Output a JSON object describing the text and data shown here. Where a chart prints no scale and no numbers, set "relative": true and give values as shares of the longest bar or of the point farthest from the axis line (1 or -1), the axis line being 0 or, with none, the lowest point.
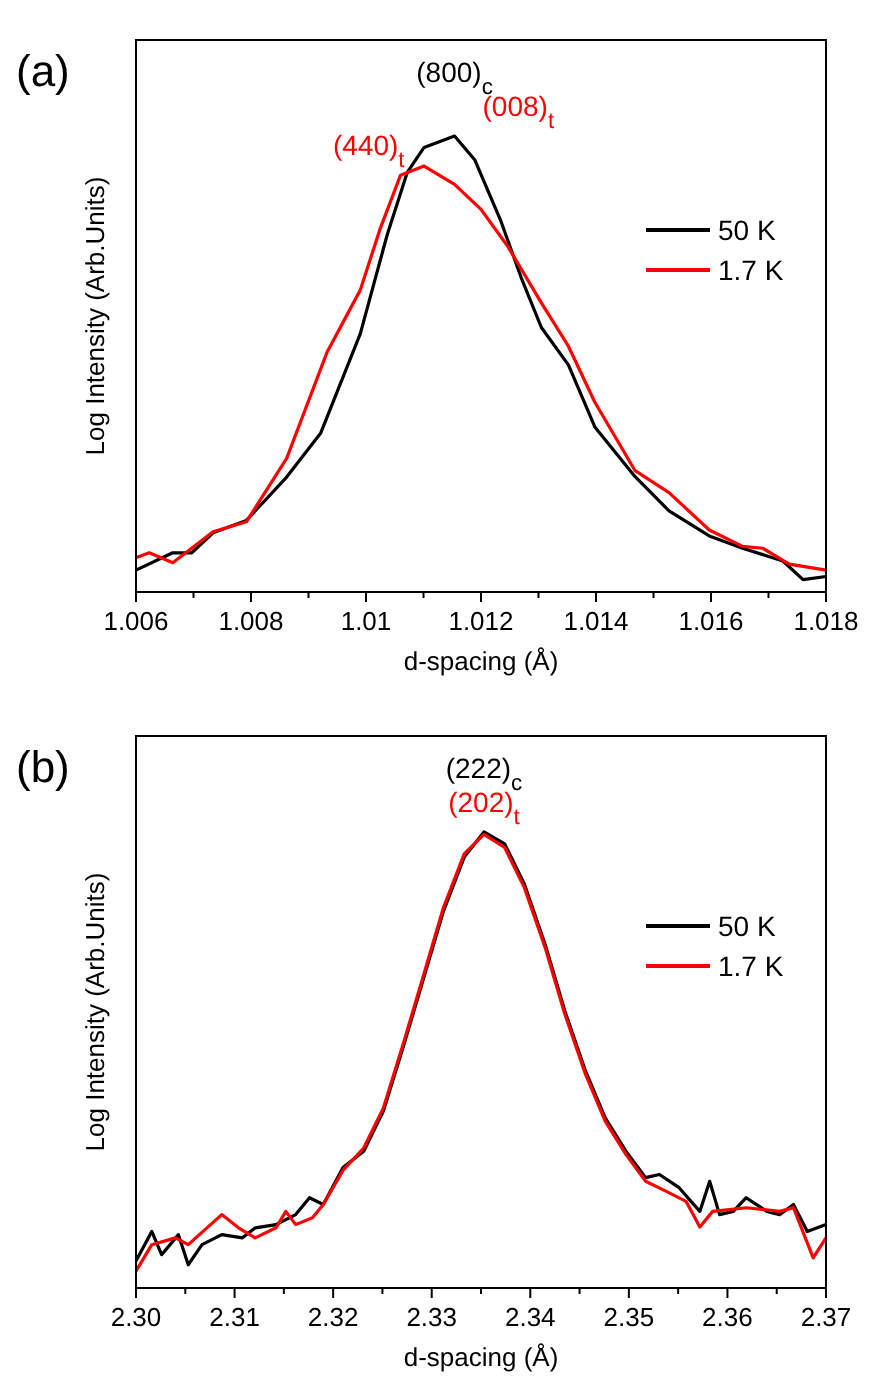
{
  "chart_data": [
    {
      "type": "line",
      "title": "(a)",
      "xlabel": "d-spacing (Å)",
      "ylabel": "Log Intensity (Arb.Units)",
      "relative": true,
      "legend": "right",
      "xlim": [
        1.006,
        1.018
      ],
      "xticks": [
        1.006,
        {
          "value": 1.007,
          "label": null
        },
        1.008,
        {
          "value": 1.009,
          "label": null
        },
        1.01,
        {
          "value": 1.011,
          "label": null
        },
        1.012,
        {
          "value": 1.013,
          "label": null
        },
        1.014,
        {
          "value": 1.015,
          "label": null
        },
        1.016,
        {
          "value": 1.017,
          "label": null
        },
        1.018
      ],
      "annotations": [
        {
          "text": "(800)$_{c}$",
          "x": 1.01154,
          "y": 1.0
        },
        {
          "text": "(440)$_{t}$",
          "x": 1.0106,
          "y": 0.914
        },
        {
          "text": "(008)$_{t}$",
          "x": 1.01154,
          "y": 0.894
        }
      ],
      "series": [
        {
          "name": "50 K",
          "color": "#000000",
          "x": [
            1.006,
            1.00664,
            1.00697,
            1.00734,
            1.00792,
            1.00862,
            1.00921,
            1.0099,
            1.01037,
            1.01072,
            1.01101,
            1.01154,
            1.01189,
            1.01235,
            1.0127,
            1.01305,
            1.01352,
            1.01398,
            1.01468,
            1.01527,
            1.01597,
            1.01655,
            1.01725,
            1.0176,
            1.018
          ],
          "values": [
            0.048,
            0.086,
            0.086,
            0.13,
            0.157,
            0.252,
            0.348,
            0.566,
            0.784,
            0.921,
            0.975,
            1.0,
            0.948,
            0.812,
            0.689,
            0.58,
            0.498,
            0.362,
            0.253,
            0.178,
            0.123,
            0.096,
            0.068,
            0.027,
            0.034
          ]
        },
        {
          "name": "1.7 K",
          "color": "#ff0000",
          "x": [
            1.006,
            1.00623,
            1.00664,
            1.00734,
            1.00792,
            1.00862,
            1.00932,
            1.0099,
            1.01025,
            1.0106,
            1.01101,
            1.01154,
            1.012,
            1.01247,
            1.01305,
            1.01352,
            1.01398,
            1.01468,
            1.01527,
            1.01597,
            1.01655,
            1.0169,
            1.01736,
            1.018
          ],
          "values": [
            0.075,
            0.086,
            0.064,
            0.132,
            0.154,
            0.293,
            0.525,
            0.662,
            0.798,
            0.914,
            0.934,
            0.894,
            0.839,
            0.757,
            0.634,
            0.539,
            0.416,
            0.266,
            0.218,
            0.136,
            0.1,
            0.096,
            0.061,
            0.048
          ]
        }
      ]
    },
    {
      "type": "line",
      "title": "(b)",
      "xlabel": "d-spacing (Å)",
      "ylabel": "Log Intensity (Arb.Units)",
      "relative": true,
      "legend": "right",
      "xlim": [
        2.3,
        2.37
      ],
      "xticks": [
        {
          "value": 2.3,
          "label": "2.30"
        },
        {
          "value": 2.305,
          "label": null
        },
        2.31,
        {
          "value": 2.315,
          "label": null
        },
        2.32,
        {
          "value": 2.325,
          "label": null
        },
        2.33,
        {
          "value": 2.335,
          "label": null
        },
        2.34,
        {
          "value": 2.345,
          "label": null
        },
        2.35,
        {
          "value": 2.355,
          "label": null
        },
        2.36,
        {
          "value": 2.365,
          "label": null
        },
        2.37
      ],
      "annotations": [
        {
          "text": "(222)$_{c}$",
          "x": 2.3353,
          "y": 1.0
        },
        {
          "text": "(202)$_{t}$",
          "x": 2.3353,
          "y": 0.995
        }
      ],
      "series": [
        {
          "name": "50 K",
          "color": "#000000",
          "x": [
            2.3,
            2.3016,
            2.3026,
            2.3043,
            2.3053,
            2.3067,
            2.3087,
            2.3108,
            2.3121,
            2.3142,
            2.3162,
            2.3176,
            2.319,
            2.321,
            2.3231,
            2.3251,
            2.3272,
            2.3292,
            2.3312,
            2.3333,
            2.3353,
            2.3374,
            2.3394,
            2.3415,
            2.3435,
            2.3456,
            2.3476,
            2.3497,
            2.3517,
            2.3531,
            2.3551,
            2.3572,
            2.3582,
            2.3592,
            2.3606,
            2.3619,
            2.364,
            2.3653,
            2.3667,
            2.3681,
            2.37
          ],
          "values": [
            0.059,
            0.124,
            0.073,
            0.117,
            0.051,
            0.095,
            0.117,
            0.11,
            0.132,
            0.139,
            0.161,
            0.198,
            0.183,
            0.264,
            0.3,
            0.388,
            0.535,
            0.681,
            0.827,
            0.945,
            1.0,
            0.974,
            0.886,
            0.754,
            0.608,
            0.476,
            0.373,
            0.3,
            0.242,
            0.249,
            0.22,
            0.168,
            0.234,
            0.161,
            0.168,
            0.198,
            0.168,
            0.161,
            0.183,
            0.124,
            0.139
          ]
        },
        {
          "name": "1.7 K",
          "color": "#ff0000",
          "x": [
            2.3,
            2.3016,
            2.304,
            2.3053,
            2.3087,
            2.3104,
            2.3121,
            2.3142,
            2.3152,
            2.3162,
            2.3179,
            2.319,
            2.321,
            2.3231,
            2.3251,
            2.3272,
            2.3292,
            2.3312,
            2.3333,
            2.3353,
            2.3374,
            2.3394,
            2.3415,
            2.3435,
            2.3456,
            2.3476,
            2.3497,
            2.3517,
            2.3538,
            2.3558,
            2.3572,
            2.3585,
            2.3619,
            2.3653,
            2.3667,
            2.3687,
            2.37
          ],
          "values": [
            0.037,
            0.095,
            0.11,
            0.095,
            0.161,
            0.132,
            0.11,
            0.132,
            0.168,
            0.139,
            0.154,
            0.183,
            0.258,
            0.307,
            0.395,
            0.542,
            0.688,
            0.835,
            0.952,
            0.995,
            0.966,
            0.878,
            0.747,
            0.601,
            0.469,
            0.366,
            0.293,
            0.234,
            0.212,
            0.19,
            0.134,
            0.168,
            0.176,
            0.168,
            0.176,
            0.066,
            0.11
          ]
        }
      ]
    }
  ]
}
